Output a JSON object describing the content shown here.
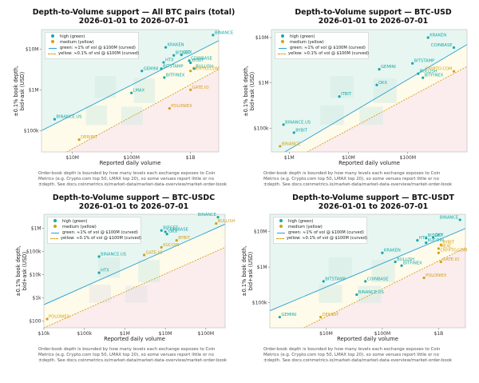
{
  "chart_data": [
    {
      "type": "scatter",
      "title_line1": "Depth-to-Volume support — All BTC pairs (total)",
      "title_line2": "2026-01-01 to 2026-07-01",
      "xlabel": "Reported daily volume",
      "ylabel_line1": "±0.1% book depth,",
      "ylabel_line2": "bid+ask (USD)",
      "log_x": true,
      "log_y": true,
      "xlim": [
        3000000,
        3000000000
      ],
      "ylim": [
        30000,
        30000000
      ],
      "xticks": [
        {
          "v": 10000000,
          "t": "$10M"
        },
        {
          "v": 100000000,
          "t": "$100M"
        },
        {
          "v": 1000000000,
          "t": "$1B"
        }
      ],
      "yticks": [
        {
          "v": 100000,
          "t": "$100k"
        },
        {
          "v": 1000000,
          "t": "$1M"
        },
        {
          "v": 10000000,
          "t": "$10M"
        }
      ],
      "legend": {
        "items": [
          "high (green)",
          "medium (yellow)",
          "green: ≈1% of vol @ $100M (curved)",
          "yellow: ≈0.1% of vol @ $100M (curved)"
        ],
        "position": "upper-left"
      },
      "green_line": [
        [
          3000000,
          100000
        ],
        [
          3000000000,
          16000000
        ]
      ],
      "yellow_line": [
        [
          8000000,
          30000
        ],
        [
          3000000000,
          3200000
        ]
      ],
      "series": [
        {
          "category": "high",
          "points": [
            {
              "label": "BINANCE",
              "x": 2400000000,
              "y": 22000000
            },
            {
              "label": "KRAKEN",
              "x": 380000000,
              "y": 11000000
            },
            {
              "label": "OKX",
              "x": 700000000,
              "y": 7200000
            },
            {
              "label": "BITGET",
              "x": 520000000,
              "y": 7000000
            },
            {
              "label": "COINBASE",
              "x": 950000000,
              "y": 5200000
            },
            {
              "label": "BYBIT",
              "x": 1000000000,
              "y": 4600000
            },
            {
              "label": "HTX",
              "x": 350000000,
              "y": 4700000
            },
            {
              "label": "BITSTAMP",
              "x": 320000000,
              "y": 3300000
            },
            {
              "label": "BULLISH",
              "x": 1150000000,
              "y": 3300000
            },
            {
              "label": "BITFINEX",
              "x": 360000000,
              "y": 2000000
            },
            {
              "label": "GEMINI",
              "x": 150000000,
              "y": 2900000
            },
            {
              "label": "LMAX",
              "x": 100000000,
              "y": 840000
            },
            {
              "label": "BINANCE.US",
              "x": 5000000,
              "y": 190000
            }
          ]
        },
        {
          "category": "medium",
          "points": [
            {
              "label": "CRYPTO.COM",
              "x": 1000000000,
              "y": 2900000
            },
            {
              "label": "GATE.IO",
              "x": 1000000000,
              "y": 1000000
            },
            {
              "label": "POLONIEX",
              "x": 440000000,
              "y": 350000
            },
            {
              "label": "DERIBIT",
              "x": 13000000,
              "y": 60000
            }
          ]
        }
      ],
      "note": "Order-book depth is bounded by how many levels each exchange exposes to Coin Metrics (e.g. Crypto.com top 50, LMAX top 20), so some venues report little or no ±depth. See docs.coinmetrics.io/market-data/market-data-overview/market-order-book"
    },
    {
      "type": "scatter",
      "title_line1": "Depth-to-Volume support — BTC-USD",
      "title_line2": "2026-01-01 to 2026-07-01",
      "xlabel": "Reported daily volume",
      "ylabel_line1": "±0.1% book depth,",
      "ylabel_line2": "bid+ask (USD)",
      "log_x": true,
      "log_y": true,
      "xlim": [
        500000,
        1000000000
      ],
      "ylim": [
        30000,
        15000000
      ],
      "xticks": [
        {
          "v": 1000000,
          "t": "$1M"
        },
        {
          "v": 10000000,
          "t": "$10M"
        },
        {
          "v": 100000000,
          "t": "$100M"
        }
      ],
      "yticks": [
        {
          "v": 100000,
          "t": "$100k"
        },
        {
          "v": 1000000,
          "t": "$1M"
        },
        {
          "v": 10000000,
          "t": "$10M"
        }
      ],
      "legend": {
        "items": [
          "high (green)",
          "medium (yellow)",
          "green: ≈1% of vol @ $100M (curved)",
          "yellow: ≈0.1% of vol @ $100M (curved)"
        ],
        "position": "upper-left"
      },
      "green_line": [
        [
          500000,
          20000
        ],
        [
          1000000000,
          7000000
        ]
      ],
      "yellow_line": [
        [
          2000000,
          30000
        ],
        [
          1000000000,
          2300000
        ]
      ],
      "series": [
        {
          "category": "high",
          "points": [
            {
              "label": "KRAKEN",
              "x": 220000000,
              "y": 10000000
            },
            {
              "label": "COINBASE",
              "x": 600000000,
              "y": 6000000
            },
            {
              "label": "BITSTAMP",
              "x": 120000000,
              "y": 2700000
            },
            {
              "label": "GEMINI",
              "x": 33000000,
              "y": 2000000
            },
            {
              "label": "BULLISH",
              "x": 150000000,
              "y": 1600000
            },
            {
              "label": "BITFINEX",
              "x": 180000000,
              "y": 1300000
            },
            {
              "label": "OKX",
              "x": 30000000,
              "y": 900000
            },
            {
              "label": "ITBIT",
              "x": 7000000,
              "y": 500000
            },
            {
              "label": "BINANCE.US",
              "x": 800000,
              "y": 120000
            },
            {
              "label": "BYBIT",
              "x": 1200000,
              "y": 80000
            }
          ]
        },
        {
          "category": "medium",
          "points": [
            {
              "label": "CRYPTO.COM",
              "x": 600000000,
              "y": 1800000
            },
            {
              "label": "BINANCE",
              "x": 700000,
              "y": 40000
            }
          ]
        }
      ],
      "note": "Order-book depth is bounded by how many levels each exchange exposes to Coin Metrics (e.g. Crypto.com top 50, LMAX top 20), so some venues report little or no ±depth. See docs.coinmetrics.io/market-data/market-data-overview/market-order-book"
    },
    {
      "type": "scatter",
      "title_line1": "Depth-to-Volume support — BTC-USDC",
      "title_line2": "2026-01-01 to 2026-07-01",
      "xlabel": "Reported daily volume",
      "ylabel_line1": "±0.1% book depth,",
      "ylabel_line2": "bid+ask (USD)",
      "log_x": true,
      "log_y": true,
      "xlim": [
        10000,
        300000000
      ],
      "ylim": [
        50,
        4000000
      ],
      "xticks": [
        {
          "v": 10000,
          "t": "$10k"
        },
        {
          "v": 100000,
          "t": "$100k"
        },
        {
          "v": 1000000,
          "t": "$1M"
        },
        {
          "v": 10000000,
          "t": "$10M"
        },
        {
          "v": 100000000,
          "t": "$100M"
        }
      ],
      "yticks": [
        {
          "v": 100,
          "t": "$100"
        },
        {
          "v": 1000,
          "t": "$1k"
        },
        {
          "v": 10000,
          "t": "$10k"
        },
        {
          "v": 100000,
          "t": "$100k"
        },
        {
          "v": 1000000,
          "t": "$1M"
        }
      ],
      "legend": {
        "items": [
          "high (green)",
          "medium (yellow)",
          "green: ≈1% of vol @ $100M (curved)",
          "yellow: ≈0.1% of vol @ $100M (curved)"
        ],
        "position": "upper-left"
      },
      "green_line": [
        [
          10000,
          500
        ],
        [
          300000000,
          1500000
        ]
      ],
      "yellow_line": [
        [
          10000,
          50
        ],
        [
          300000000,
          150000
        ]
      ],
      "series": [
        {
          "category": "high",
          "points": [
            {
              "label": "BINANCE",
              "x": 200000000,
              "y": 3000000
            },
            {
              "label": "BITGET",
              "x": 8000000,
              "y": 800000
            },
            {
              "label": "COINBASE",
              "x": 10000000,
              "y": 700000
            },
            {
              "label": "OKX",
              "x": 11000000,
              "y": 560000
            },
            {
              "label": "BINANCE.US",
              "x": 230000,
              "y": 60000
            },
            {
              "label": "HTX",
              "x": 230000,
              "y": 12000
            }
          ]
        },
        {
          "category": "medium",
          "points": [
            {
              "label": "BULLISH",
              "x": 180000000,
              "y": 1600000
            },
            {
              "label": "BYBIT",
              "x": 19000000,
              "y": 300000
            },
            {
              "label": "KUCOIN",
              "x": 8000000,
              "y": 150000
            },
            {
              "label": "GATE.IO",
              "x": 3000000,
              "y": 70000
            },
            {
              "label": "POLONIEX",
              "x": 12000,
              "y": 120
            }
          ]
        }
      ],
      "note": "Order-book depth is bounded by how many levels each exchange exposes to Coin Metrics (e.g. Crypto.com top 50, LMAX top 20), so some venues report little or no ±depth. See docs.coinmetrics.io/market-data/market-data-overview/market-order-book"
    },
    {
      "type": "scatter",
      "title_line1": "Depth-to-Volume support — BTC-USDT",
      "title_line2": "2026-01-01 to 2026-07-01",
      "xlabel": "Reported daily volume",
      "ylabel_line1": "±0.1% book depth,",
      "ylabel_line2": "bid+ask (USD)",
      "log_x": true,
      "log_y": true,
      "xlim": [
        1000000,
        3000000000
      ],
      "ylim": [
        20000,
        30000000
      ],
      "xticks": [
        {
          "v": 10000000,
          "t": "$10M"
        },
        {
          "v": 100000000,
          "t": "$100M"
        },
        {
          "v": 1000000000,
          "t": "$1B"
        }
      ],
      "yticks": [
        {
          "v": 100000,
          "t": "$100k"
        },
        {
          "v": 1000000,
          "t": "$1M"
        },
        {
          "v": 10000000,
          "t": "$10M"
        }
      ],
      "legend": {
        "items": [
          "high (green)",
          "medium (yellow)",
          "green: ≈1% of vol @ $100M (curved)",
          "yellow: ≈0.1% of vol @ $100M (curved)"
        ],
        "position": "upper-left"
      },
      "green_line": [
        [
          1000000,
          60000
        ],
        [
          3000000000,
          12000000
        ]
      ],
      "yellow_line": [
        [
          4000000,
          20000
        ],
        [
          3000000000,
          3500000
        ]
      ],
      "series": [
        {
          "category": "high",
          "points": [
            {
              "label": "BINANCE",
              "x": 2400000000,
              "y": 21000000
            },
            {
              "label": "OKX",
              "x": 800000000,
              "y": 6800000
            },
            {
              "label": "BITGET",
              "x": 600000000,
              "y": 6500000
            },
            {
              "label": "HTX",
              "x": 420000000,
              "y": 5600000
            },
            {
              "label": "KUCOIN",
              "x": 600000000,
              "y": 4800000
            },
            {
              "label": "KRAKEN",
              "x": 100000000,
              "y": 2500000
            },
            {
              "label": "BULLISH",
              "x": 170000000,
              "y": 1400000
            },
            {
              "label": "BITFINEX",
              "x": 220000000,
              "y": 1100000
            },
            {
              "label": "COINBASE",
              "x": 50000000,
              "y": 400000
            },
            {
              "label": "BITSTAMP",
              "x": 9000000,
              "y": 400000
            },
            {
              "label": "BINANCE.US",
              "x": 35000000,
              "y": 170000
            },
            {
              "label": "GEMINI",
              "x": 1500000,
              "y": 40000
            }
          ]
        },
        {
          "category": "medium",
          "points": [
            {
              "label": "BYBIT",
              "x": 1100000000,
              "y": 4200000
            },
            {
              "label": "MEXC",
              "x": 1000000000,
              "y": 3300000
            },
            {
              "label": "CRYPTO.COM",
              "x": 1000000000,
              "y": 2500000
            },
            {
              "label": "GATE.IO",
              "x": 1100000000,
              "y": 1400000
            },
            {
              "label": "POLONIEX",
              "x": 550000000,
              "y": 500000
            },
            {
              "label": "DERIBIT",
              "x": 8000000,
              "y": 40000
            }
          ]
        }
      ],
      "note": "Order-book depth is bounded by how many levels each exchange exposes to Coin Metrics (e.g. Crypto.com top 50, LMAX top 20), so some venues report little or no ±depth. See docs.coinmetrics.io/market-data/market-data-overview/market-order-book"
    }
  ],
  "colors": {
    "high": "#17a8a8",
    "medium": "#d4a017",
    "green_line": "#2a9fd0",
    "yellow_line": "#d4a017",
    "green_zone": "#e7f6f1",
    "red_zone": "#fbeced",
    "box": "#d6ece3",
    "grey_box": "#e6e6e6"
  }
}
